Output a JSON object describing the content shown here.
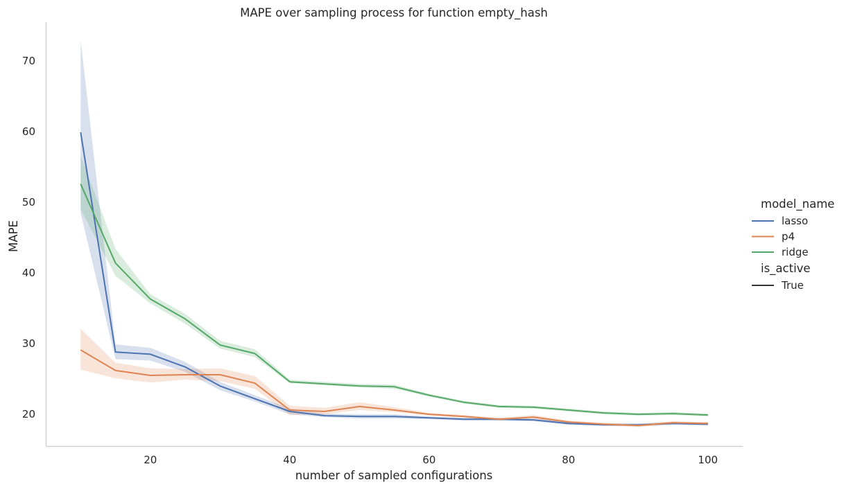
{
  "chart_data": {
    "type": "line",
    "title": "MAPE over sampling process for function empty_hash",
    "xlabel": "number of sampled configurations",
    "ylabel": "MAPE",
    "xlim": [
      5,
      105
    ],
    "ylim": [
      15.5,
      75.5
    ],
    "x_ticks": [
      20,
      40,
      60,
      80,
      100
    ],
    "y_ticks": [
      20,
      30,
      40,
      50,
      60,
      70
    ],
    "grid": false,
    "legend_position": "right",
    "legend": {
      "hue_title": "model_name",
      "style_title": "is_active",
      "style_entries": [
        "True"
      ]
    },
    "x": [
      10,
      15,
      20,
      25,
      30,
      35,
      40,
      45,
      50,
      55,
      60,
      65,
      70,
      75,
      80,
      85,
      90,
      95,
      100
    ],
    "series": [
      {
        "name": "lasso",
        "color": "#4c72b0",
        "values": [
          59.9,
          28.8,
          28.5,
          26.7,
          24.0,
          22.2,
          20.4,
          19.8,
          19.7,
          19.7,
          19.5,
          19.3,
          19.3,
          19.2,
          18.7,
          18.5,
          18.5,
          18.7,
          18.6
        ],
        "lower": [
          48.5,
          27.8,
          27.6,
          26.0,
          23.4,
          21.8,
          20.0,
          19.6,
          19.4,
          19.4,
          19.3,
          19.1,
          19.1,
          19.0,
          18.5,
          18.4,
          18.3,
          18.5,
          18.4
        ],
        "upper": [
          72.9,
          29.9,
          29.4,
          27.4,
          24.6,
          22.7,
          20.8,
          20.1,
          20.0,
          20.0,
          19.7,
          19.5,
          19.5,
          19.4,
          18.9,
          18.7,
          18.7,
          18.9,
          18.8
        ]
      },
      {
        "name": "p4",
        "color": "#dd8452",
        "values": [
          29.1,
          26.2,
          25.5,
          25.6,
          25.6,
          24.4,
          20.6,
          20.4,
          21.1,
          20.6,
          20.0,
          19.7,
          19.3,
          19.6,
          18.9,
          18.6,
          18.4,
          18.8,
          18.7
        ],
        "lower": [
          26.3,
          25.1,
          24.5,
          24.9,
          24.7,
          23.6,
          19.9,
          20.0,
          20.6,
          20.3,
          19.8,
          19.5,
          19.1,
          19.4,
          18.7,
          18.4,
          18.2,
          18.6,
          18.5
        ],
        "upper": [
          32.1,
          27.3,
          26.5,
          26.4,
          26.5,
          25.4,
          21.2,
          20.9,
          21.7,
          21.0,
          20.2,
          19.9,
          19.5,
          19.9,
          19.1,
          18.8,
          18.6,
          19.0,
          18.9
        ]
      },
      {
        "name": "ridge",
        "color": "#55a868",
        "values": [
          52.6,
          41.4,
          36.3,
          33.5,
          29.8,
          28.6,
          24.6,
          24.3,
          24.0,
          23.9,
          22.7,
          21.7,
          21.1,
          21.0,
          20.6,
          20.2,
          20.0,
          20.1,
          19.9
        ],
        "lower": [
          49.0,
          39.6,
          35.7,
          32.8,
          29.3,
          28.1,
          24.4,
          24.1,
          23.8,
          23.6,
          22.5,
          21.5,
          20.9,
          20.8,
          20.4,
          20.0,
          19.8,
          19.9,
          19.7
        ],
        "upper": [
          56.6,
          43.4,
          37.0,
          34.2,
          30.4,
          29.2,
          24.9,
          24.6,
          24.3,
          24.2,
          22.9,
          21.9,
          21.3,
          21.2,
          20.8,
          20.4,
          20.2,
          20.3,
          20.1
        ]
      }
    ]
  }
}
